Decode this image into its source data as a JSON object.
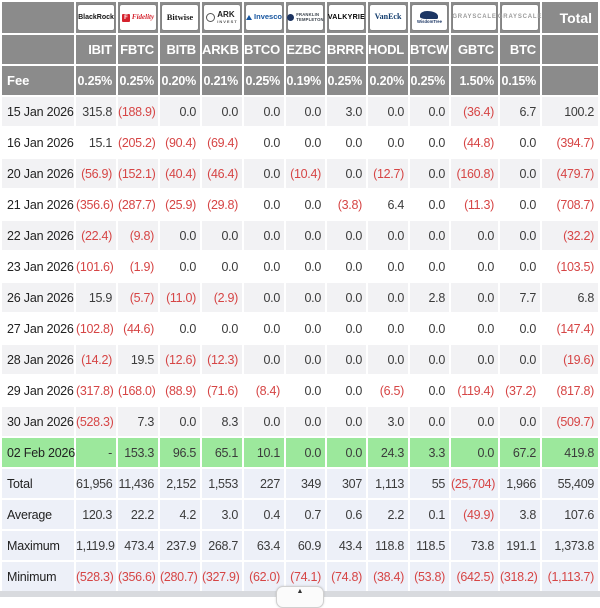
{
  "colors": {
    "header_bg": "#8b8b8b",
    "stripe": "#f2f2f4",
    "highlight_green": "#9ce89c",
    "summary_bg": "#edf0f8",
    "negative_red": "#d64545"
  },
  "header": {
    "total_label": "Total",
    "fee_label": "Fee",
    "providers": [
      {
        "name": "BlackRock",
        "style": "blackrock"
      },
      {
        "name": "Fidelity",
        "style": "fidelity",
        "icon": "fidelity-f-square-icon"
      },
      {
        "name": "Bitwise",
        "style": "bitwise"
      },
      {
        "name": "ARK",
        "sub": "INVEST",
        "style": "ark",
        "icon": "ark-circle-icon"
      },
      {
        "name": "Invesco",
        "style": "invesco",
        "icon": "invesco-triangle-icon"
      },
      {
        "name": "FRANKLIN",
        "sub": "TEMPLETON",
        "style": "franklin",
        "icon": "franklin-circle-icon"
      },
      {
        "name": "VALKYRIE",
        "style": "valkyrie"
      },
      {
        "name": "VanEck",
        "style": "vaneck"
      },
      {
        "name": "WisdomTree",
        "style": "wisdomtree",
        "icon": "wisdomtree-swoosh-icon"
      },
      {
        "name": "GRAYSCALE",
        "style": "grayscale"
      },
      {
        "name": "GRAYSCALE",
        "style": "grayscale"
      }
    ],
    "tickers": [
      "IBIT",
      "FBTC",
      "BITB",
      "ARKB",
      "BTCO",
      "EZBC",
      "BRRR",
      "HODL",
      "BTCW",
      "GBTC",
      "BTC"
    ],
    "fees": [
      "0.25%",
      "0.25%",
      "0.20%",
      "0.21%",
      "0.25%",
      "0.19%",
      "0.25%",
      "0.20%",
      "0.25%",
      "1.50%",
      "0.15%"
    ]
  },
  "rows": [
    {
      "date": "15 Jan 2026",
      "values": [
        "315.8",
        "(188.9)",
        "0.0",
        "0.0",
        "0.0",
        "0.0",
        "3.0",
        "0.0",
        "0.0",
        "(36.4)",
        "6.7",
        "100.2"
      ]
    },
    {
      "date": "16 Jan 2026",
      "values": [
        "15.1",
        "(205.2)",
        "(90.4)",
        "(69.4)",
        "0.0",
        "0.0",
        "0.0",
        "0.0",
        "0.0",
        "(44.8)",
        "0.0",
        "(394.7)"
      ]
    },
    {
      "date": "20 Jan 2026",
      "values": [
        "(56.9)",
        "(152.1)",
        "(40.4)",
        "(46.4)",
        "0.0",
        "(10.4)",
        "0.0",
        "(12.7)",
        "0.0",
        "(160.8)",
        "0.0",
        "(479.7)"
      ]
    },
    {
      "date": "21 Jan 2026",
      "values": [
        "(356.6)",
        "(287.7)",
        "(25.9)",
        "(29.8)",
        "0.0",
        "0.0",
        "(3.8)",
        "6.4",
        "0.0",
        "(11.3)",
        "0.0",
        "(708.7)"
      ]
    },
    {
      "date": "22 Jan 2026",
      "values": [
        "(22.4)",
        "(9.8)",
        "0.0",
        "0.0",
        "0.0",
        "0.0",
        "0.0",
        "0.0",
        "0.0",
        "0.0",
        "0.0",
        "(32.2)"
      ]
    },
    {
      "date": "23 Jan 2026",
      "values": [
        "(101.6)",
        "(1.9)",
        "0.0",
        "0.0",
        "0.0",
        "0.0",
        "0.0",
        "0.0",
        "0.0",
        "0.0",
        "0.0",
        "(103.5)"
      ]
    },
    {
      "date": "26 Jan 2026",
      "values": [
        "15.9",
        "(5.7)",
        "(11.0)",
        "(2.9)",
        "0.0",
        "0.0",
        "0.0",
        "0.0",
        "2.8",
        "0.0",
        "7.7",
        "6.8"
      ]
    },
    {
      "date": "27 Jan 2026",
      "values": [
        "(102.8)",
        "(44.6)",
        "0.0",
        "0.0",
        "0.0",
        "0.0",
        "0.0",
        "0.0",
        "0.0",
        "0.0",
        "0.0",
        "(147.4)"
      ]
    },
    {
      "date": "28 Jan 2026",
      "values": [
        "(14.2)",
        "19.5",
        "(12.6)",
        "(12.3)",
        "0.0",
        "0.0",
        "0.0",
        "0.0",
        "0.0",
        "0.0",
        "0.0",
        "(19.6)"
      ]
    },
    {
      "date": "29 Jan 2026",
      "values": [
        "(317.8)",
        "(168.0)",
        "(88.9)",
        "(71.6)",
        "(8.4)",
        "0.0",
        "0.0",
        "(6.5)",
        "0.0",
        "(119.4)",
        "(37.2)",
        "(817.8)"
      ]
    },
    {
      "date": "30 Jan 2026",
      "values": [
        "(528.3)",
        "7.3",
        "0.0",
        "8.3",
        "0.0",
        "0.0",
        "0.0",
        "3.0",
        "0.0",
        "0.0",
        "0.0",
        "(509.7)"
      ]
    },
    {
      "date": "02 Feb 2026",
      "highlight": true,
      "values": [
        "-",
        "153.3",
        "96.5",
        "65.1",
        "10.1",
        "0.0",
        "0.0",
        "24.3",
        "3.3",
        "0.0",
        "67.2",
        "419.8"
      ]
    }
  ],
  "summary": [
    {
      "label": "Total",
      "values": [
        "61,956",
        "11,436",
        "2,152",
        "1,553",
        "227",
        "349",
        "307",
        "1,113",
        "55",
        "(25,704)",
        "1,966",
        "55,409"
      ]
    },
    {
      "label": "Average",
      "values": [
        "120.3",
        "22.2",
        "4.2",
        "3.0",
        "0.4",
        "0.7",
        "0.6",
        "2.2",
        "0.1",
        "(49.9)",
        "3.8",
        "107.6"
      ]
    },
    {
      "label": "Maximum",
      "values": [
        "1,119.9",
        "473.4",
        "237.9",
        "268.7",
        "63.4",
        "60.9",
        "43.4",
        "118.8",
        "118.5",
        "73.8",
        "191.1",
        "1,373.8"
      ]
    },
    {
      "label": "Minimum",
      "values": [
        "(528.3)",
        "(356.6)",
        "(280.7)",
        "(327.9)",
        "(62.0)",
        "(74.1)",
        "(74.8)",
        "(38.4)",
        "(53.8)",
        "(642.5)",
        "(318.2)",
        "(1,113.7)"
      ]
    }
  ],
  "footer": {
    "scroll_hint_icon": "chevron-up-icon"
  }
}
